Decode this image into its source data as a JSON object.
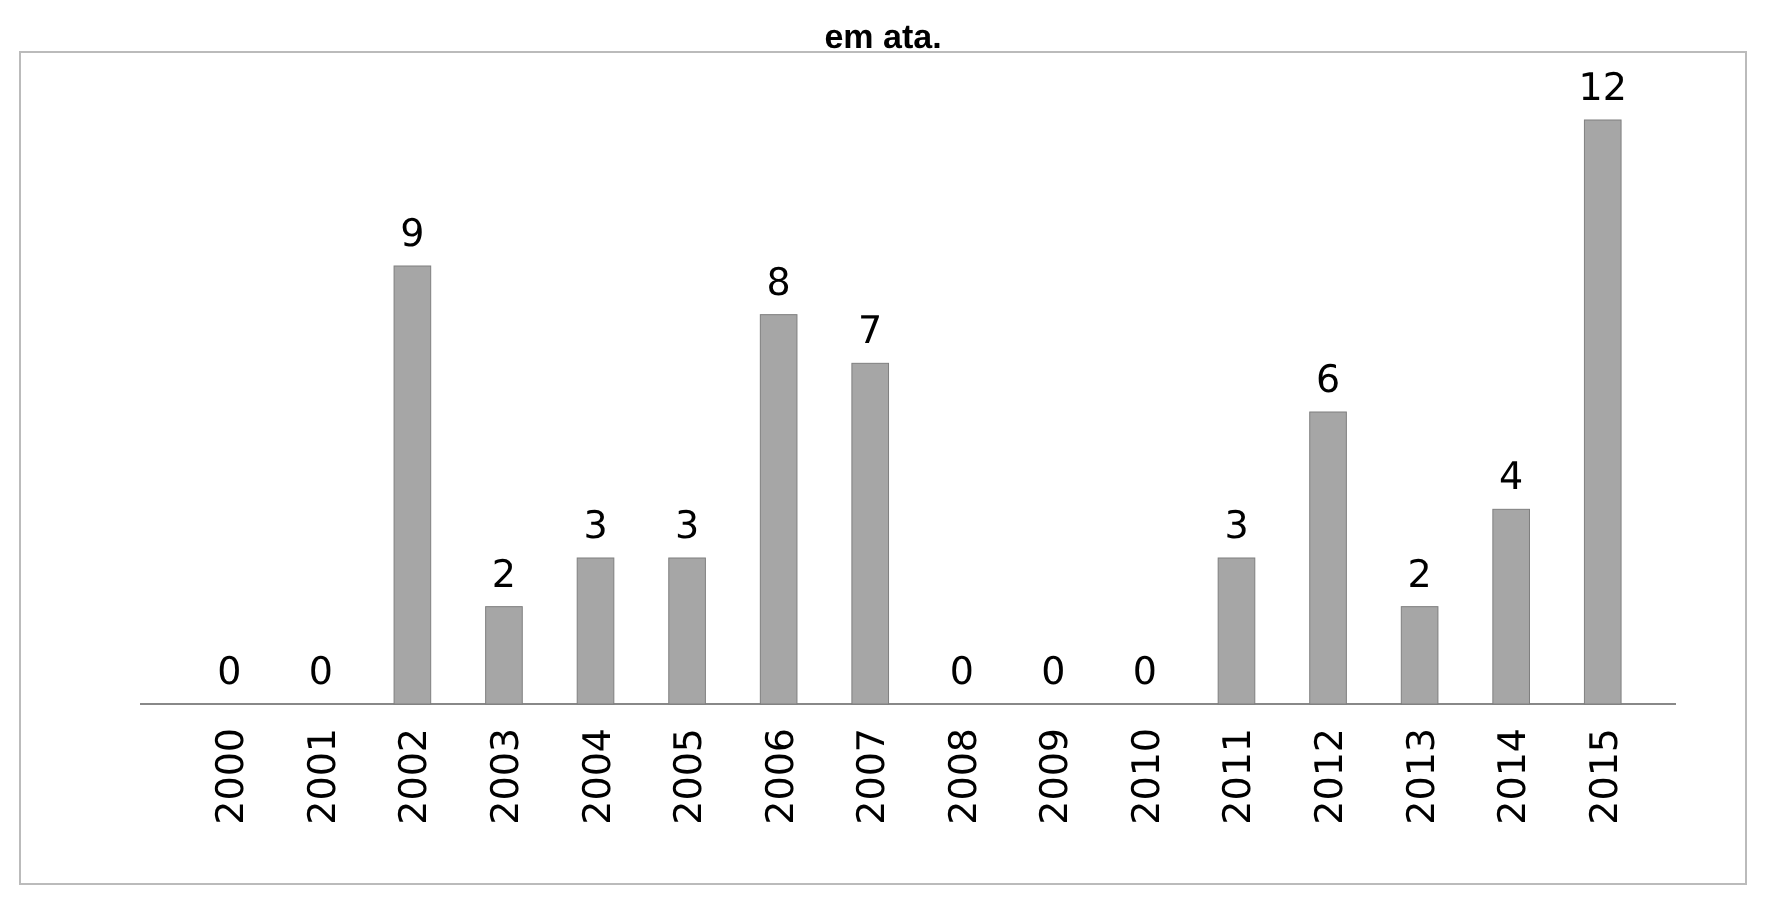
{
  "chart_data": {
    "type": "bar",
    "title": "em ata.",
    "categories": [
      "2000",
      "2001",
      "2002",
      "2003",
      "2004",
      "2005",
      "2006",
      "2007",
      "2008",
      "2009",
      "2010",
      "2011",
      "2012",
      "2013",
      "2014",
      "2015"
    ],
    "values": [
      0,
      0,
      9,
      2,
      3,
      3,
      8,
      7,
      0,
      0,
      0,
      3,
      6,
      2,
      4,
      12
    ],
    "color": "#a6a6a6",
    "data_labels": true
  }
}
